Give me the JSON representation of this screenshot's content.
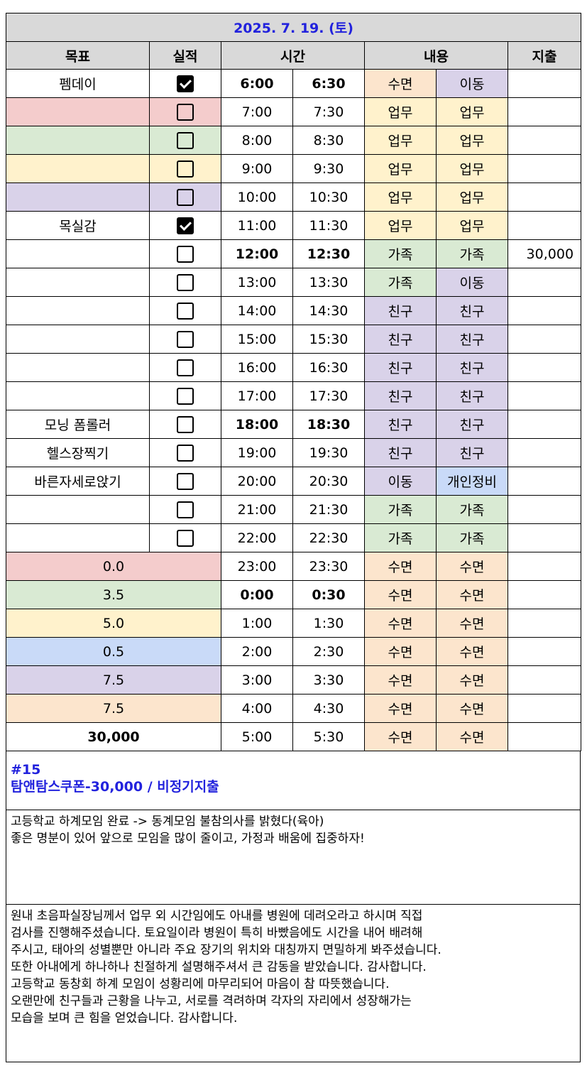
{
  "title": "2025. 7. 19. (토)",
  "headers": {
    "goal": "목표",
    "done": "실적",
    "time": "시간",
    "content": "내용",
    "expense": "지출"
  },
  "colors": {
    "header_bg": "#d9d9d9",
    "title_text": "#2222dd",
    "red": "#f4cccc",
    "green": "#d9ead3",
    "yellow": "#fff2cc",
    "blue": "#c9daf8",
    "purple": "#d9d2e9",
    "orange": "#fce5cd"
  },
  "goal_rows": [
    {
      "goal": "펨데이",
      "goal_color": "",
      "checked": true
    },
    {
      "goal": "",
      "goal_color": "red",
      "checked": false
    },
    {
      "goal": "",
      "goal_color": "green",
      "checked": false
    },
    {
      "goal": "",
      "goal_color": "yellow",
      "checked": false
    },
    {
      "goal": "",
      "goal_color": "purple",
      "checked": false
    },
    {
      "goal": "목실감",
      "goal_color": "",
      "checked": true
    },
    {
      "goal": "",
      "goal_color": "",
      "checked": false
    },
    {
      "goal": "",
      "goal_color": "",
      "checked": false
    },
    {
      "goal": "",
      "goal_color": "",
      "checked": false
    },
    {
      "goal": "",
      "goal_color": "",
      "checked": false
    },
    {
      "goal": "",
      "goal_color": "",
      "checked": false
    },
    {
      "goal": "",
      "goal_color": "",
      "checked": false
    },
    {
      "goal": "모닝 폼롤러",
      "goal_color": "",
      "checked": false
    },
    {
      "goal": "헬스장찍기",
      "goal_color": "",
      "checked": false
    },
    {
      "goal": "바른자세로앉기",
      "goal_color": "",
      "checked": false
    },
    {
      "goal": "",
      "goal_color": "",
      "checked": false
    },
    {
      "goal": "",
      "goal_color": "",
      "checked": false
    }
  ],
  "summary_rows": [
    {
      "value": "0.0",
      "color": "red"
    },
    {
      "value": "3.5",
      "color": "green"
    },
    {
      "value": "5.0",
      "color": "yellow"
    },
    {
      "value": "0.5",
      "color": "blue"
    },
    {
      "value": "7.5",
      "color": "purple"
    },
    {
      "value": "7.5",
      "color": "orange"
    },
    {
      "value": "30,000",
      "color": "",
      "bold": true
    }
  ],
  "schedule": [
    {
      "t1": "6:00",
      "t2": "6:30",
      "bold": true,
      "c1": "수면",
      "c1_color": "orange",
      "c2": "이동",
      "c2_color": "purple",
      "expense": ""
    },
    {
      "t1": "7:00",
      "t2": "7:30",
      "bold": false,
      "c1": "업무",
      "c1_color": "yellow",
      "c2": "업무",
      "c2_color": "yellow",
      "expense": ""
    },
    {
      "t1": "8:00",
      "t2": "8:30",
      "bold": false,
      "c1": "업무",
      "c1_color": "yellow",
      "c2": "업무",
      "c2_color": "yellow",
      "expense": ""
    },
    {
      "t1": "9:00",
      "t2": "9:30",
      "bold": false,
      "c1": "업무",
      "c1_color": "yellow",
      "c2": "업무",
      "c2_color": "yellow",
      "expense": ""
    },
    {
      "t1": "10:00",
      "t2": "10:30",
      "bold": false,
      "c1": "업무",
      "c1_color": "yellow",
      "c2": "업무",
      "c2_color": "yellow",
      "expense": ""
    },
    {
      "t1": "11:00",
      "t2": "11:30",
      "bold": false,
      "c1": "업무",
      "c1_color": "yellow",
      "c2": "업무",
      "c2_color": "yellow",
      "expense": ""
    },
    {
      "t1": "12:00",
      "t2": "12:30",
      "bold": true,
      "c1": "가족",
      "c1_color": "green",
      "c2": "가족",
      "c2_color": "green",
      "expense": "30,000"
    },
    {
      "t1": "13:00",
      "t2": "13:30",
      "bold": false,
      "c1": "가족",
      "c1_color": "green",
      "c2": "이동",
      "c2_color": "purple",
      "expense": ""
    },
    {
      "t1": "14:00",
      "t2": "14:30",
      "bold": false,
      "c1": "친구",
      "c1_color": "purple",
      "c2": "친구",
      "c2_color": "purple",
      "expense": ""
    },
    {
      "t1": "15:00",
      "t2": "15:30",
      "bold": false,
      "c1": "친구",
      "c1_color": "purple",
      "c2": "친구",
      "c2_color": "purple",
      "expense": ""
    },
    {
      "t1": "16:00",
      "t2": "16:30",
      "bold": false,
      "c1": "친구",
      "c1_color": "purple",
      "c2": "친구",
      "c2_color": "purple",
      "expense": ""
    },
    {
      "t1": "17:00",
      "t2": "17:30",
      "bold": false,
      "c1": "친구",
      "c1_color": "purple",
      "c2": "친구",
      "c2_color": "purple",
      "expense": ""
    },
    {
      "t1": "18:00",
      "t2": "18:30",
      "bold": true,
      "c1": "친구",
      "c1_color": "purple",
      "c2": "친구",
      "c2_color": "purple",
      "expense": ""
    },
    {
      "t1": "19:00",
      "t2": "19:30",
      "bold": false,
      "c1": "친구",
      "c1_color": "purple",
      "c2": "친구",
      "c2_color": "purple",
      "expense": ""
    },
    {
      "t1": "20:00",
      "t2": "20:30",
      "bold": false,
      "c1": "이동",
      "c1_color": "purple",
      "c2": "개인정비",
      "c2_color": "blue",
      "expense": ""
    },
    {
      "t1": "21:00",
      "t2": "21:30",
      "bold": false,
      "c1": "가족",
      "c1_color": "green",
      "c2": "가족",
      "c2_color": "green",
      "expense": ""
    },
    {
      "t1": "22:00",
      "t2": "22:30",
      "bold": false,
      "c1": "가족",
      "c1_color": "green",
      "c2": "가족",
      "c2_color": "green",
      "expense": ""
    },
    {
      "t1": "23:00",
      "t2": "23:30",
      "bold": false,
      "c1": "수면",
      "c1_color": "orange",
      "c2": "수면",
      "c2_color": "orange",
      "expense": ""
    },
    {
      "t1": "0:00",
      "t2": "0:30",
      "bold": true,
      "c1": "수면",
      "c1_color": "orange",
      "c2": "수면",
      "c2_color": "orange",
      "expense": ""
    },
    {
      "t1": "1:00",
      "t2": "1:30",
      "bold": false,
      "c1": "수면",
      "c1_color": "orange",
      "c2": "수면",
      "c2_color": "orange",
      "expense": ""
    },
    {
      "t1": "2:00",
      "t2": "2:30",
      "bold": false,
      "c1": "수면",
      "c1_color": "orange",
      "c2": "수면",
      "c2_color": "orange",
      "expense": ""
    },
    {
      "t1": "3:00",
      "t2": "3:30",
      "bold": false,
      "c1": "수면",
      "c1_color": "orange",
      "c2": "수면",
      "c2_color": "orange",
      "expense": ""
    },
    {
      "t1": "4:00",
      "t2": "4:30",
      "bold": false,
      "c1": "수면",
      "c1_color": "orange",
      "c2": "수면",
      "c2_color": "orange",
      "expense": ""
    },
    {
      "t1": "5:00",
      "t2": "5:30",
      "bold": false,
      "c1": "수면",
      "c1_color": "orange",
      "c2": "수면",
      "c2_color": "orange",
      "expense": ""
    }
  ],
  "notes": {
    "tag_lines": [
      "#15",
      "탐앤탐스쿠폰-30,000 / 비정기지출"
    ],
    "memo_lines": [
      "고등학교 하계모임 완료 -> 동계모임 불참의사를 밝혔다(육아)",
      "좋은 명분이 있어 앞으로 모임을 많이 줄이고, 가정과 배움에 집중하자!"
    ],
    "gratitude_lines": [
      "원내 초음파실장님께서 업무 외 시간임에도 아내를 병원에 데려오라고 하시며 직접",
      "검사를 진행해주셨습니다. 토요일이라 병원이 특히 바빴음에도 시간을 내어 배려해",
      "주시고, 태아의 성별뿐만 아니라 주요 장기의 위치와 대칭까지 면밀하게 봐주셨습니다.",
      "또한 아내에게 하나하나 친절하게 설명해주셔서 큰 감동을 받았습니다. 감사합니다.",
      "고등학교 동창회 하계 모임이 성황리에 마무리되어 마음이 참 따뜻했습니다.",
      "오랜만에 친구들과 근황을 나누고, 서로를 격려하며 각자의 자리에서 성장해가는",
      " 모습을 보며 큰 힘을 얻었습니다. 감사합니다."
    ]
  }
}
